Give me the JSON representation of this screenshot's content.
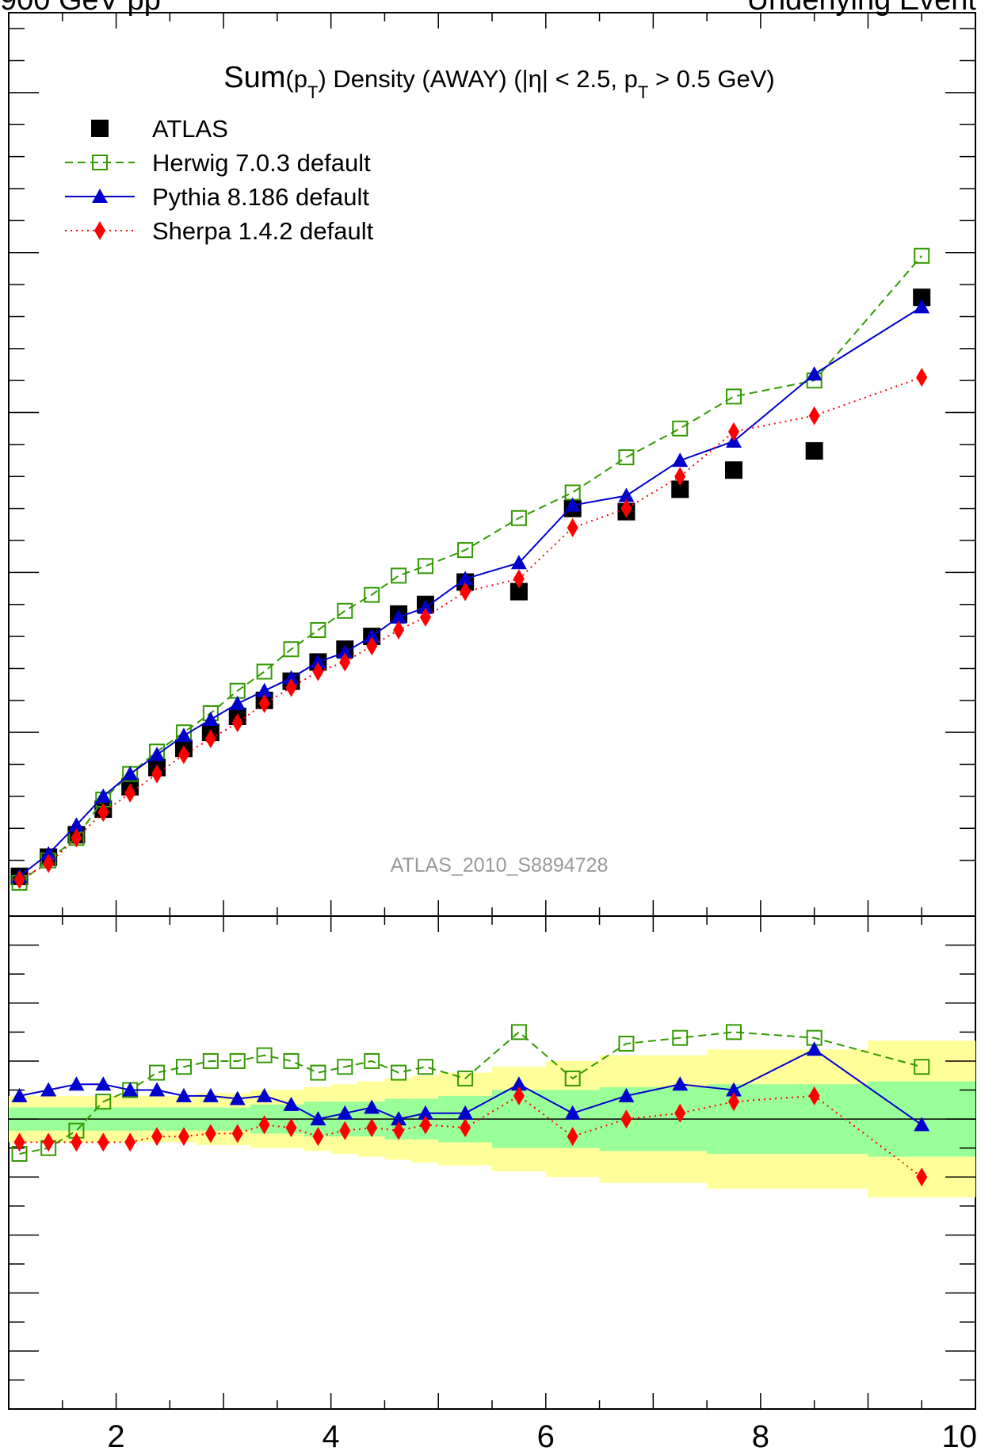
{
  "header": {
    "left": "900 GeV pp",
    "right": "Underlying Event"
  },
  "chart_data": {
    "type": "line",
    "title": "Sum(pT) Density (AWAY) (|η| < 2.5, pT > 0.5 GeV)",
    "title_parts": {
      "main": "Sum",
      "p1": "(p",
      "s1": "T",
      "p2": ") Density (AWAY) (|η| < 2.5, p",
      "s2": "T",
      "p3": " > 0.5 GeV)"
    },
    "watermark": "ATLAS_2010_S8894728",
    "xlim": [
      1,
      10
    ],
    "ylim": [
      0,
      2.75
    ],
    "ratio_ylim": [
      0.5,
      1.35
    ],
    "grid": false,
    "legend_position": "top-left",
    "x_ticks": [
      2,
      4,
      6,
      8,
      10
    ],
    "x_tick_labels": [
      "2",
      "4",
      "6",
      "8",
      "10"
    ],
    "x": [
      1.1,
      1.37,
      1.63,
      1.88,
      2.13,
      2.38,
      2.63,
      2.88,
      3.13,
      3.38,
      3.63,
      3.88,
      4.13,
      4.38,
      4.63,
      4.88,
      5.25,
      5.75,
      6.25,
      6.75,
      7.25,
      7.75,
      8.5,
      9.5
    ],
    "series": [
      {
        "name": "ATLAS",
        "color": "#000000",
        "marker": "filled-square",
        "line": "none",
        "values": [
          0.05,
          0.11,
          0.18,
          0.26,
          0.33,
          0.39,
          0.45,
          0.5,
          0.55,
          0.6,
          0.66,
          0.72,
          0.76,
          0.8,
          0.87,
          0.9,
          0.97,
          0.94,
          1.2,
          1.19,
          1.26,
          1.32,
          1.38,
          1.86
        ],
        "ratio": [
          1.0,
          1.0,
          1.0,
          1.0,
          1.0,
          1.0,
          1.0,
          1.0,
          1.0,
          1.0,
          1.0,
          1.0,
          1.0,
          1.0,
          1.0,
          1.0,
          1.0,
          1.0,
          1.0,
          1.0,
          1.0,
          1.0,
          1.0,
          1.0
        ]
      },
      {
        "name": "Herwig 7.0.3 default",
        "color": "#339900",
        "marker": "open-square",
        "line": "dashed",
        "values": [
          0.03,
          0.1,
          0.17,
          0.29,
          0.37,
          0.44,
          0.5,
          0.56,
          0.63,
          0.69,
          0.76,
          0.82,
          0.88,
          0.93,
          0.99,
          1.02,
          1.07,
          1.17,
          1.25,
          1.36,
          1.45,
          1.55,
          1.6,
          1.99
        ],
        "ratio": [
          0.94,
          0.95,
          0.98,
          1.03,
          1.05,
          1.08,
          1.09,
          1.1,
          1.1,
          1.11,
          1.1,
          1.08,
          1.09,
          1.1,
          1.08,
          1.09,
          1.07,
          1.15,
          1.07,
          1.13,
          1.14,
          1.15,
          1.14,
          1.09
        ],
        "ratio_note": "ratio values read from lower panel"
      },
      {
        "name": "Pythia 8.186 default",
        "color": "#0000cc",
        "marker": "filled-triangle",
        "line": "solid",
        "values": [
          0.05,
          0.12,
          0.21,
          0.3,
          0.37,
          0.43,
          0.49,
          0.54,
          0.59,
          0.63,
          0.67,
          0.72,
          0.75,
          0.8,
          0.86,
          0.89,
          0.98,
          1.03,
          1.21,
          1.24,
          1.35,
          1.41,
          1.62,
          1.83
        ],
        "ratio": [
          1.04,
          1.05,
          1.06,
          1.06,
          1.05,
          1.05,
          1.04,
          1.04,
          1.035,
          1.04,
          1.025,
          1.0,
          1.01,
          1.02,
          1.0,
          1.01,
          1.01,
          1.06,
          1.01,
          1.04,
          1.06,
          1.05,
          1.12,
          0.99
        ]
      },
      {
        "name": "Sherpa 1.4.2 default",
        "color": "#ff0000",
        "marker": "filled-diamond",
        "line": "dotted",
        "values": [
          0.04,
          0.09,
          0.17,
          0.25,
          0.31,
          0.37,
          0.43,
          0.48,
          0.53,
          0.59,
          0.64,
          0.69,
          0.72,
          0.77,
          0.82,
          0.86,
          0.94,
          0.98,
          1.14,
          1.2,
          1.3,
          1.44,
          1.49,
          1.61
        ],
        "ratio": [
          0.96,
          0.96,
          0.96,
          0.96,
          0.96,
          0.97,
          0.97,
          0.975,
          0.975,
          0.99,
          0.985,
          0.97,
          0.98,
          0.985,
          0.98,
          0.99,
          0.985,
          1.04,
          0.97,
          1.0,
          1.01,
          1.03,
          1.04,
          0.9
        ]
      }
    ],
    "ratio_bands": {
      "edges": [
        1.0,
        1.25,
        1.5,
        1.75,
        2.0,
        2.25,
        2.5,
        2.75,
        3.0,
        3.25,
        3.5,
        3.75,
        4.0,
        4.25,
        4.5,
        4.75,
        5.0,
        5.5,
        6.0,
        6.5,
        7.0,
        7.5,
        8.0,
        9.0,
        10.0
      ],
      "inner": [
        0.02,
        0.02,
        0.02,
        0.02,
        0.02,
        0.02,
        0.02,
        0.02,
        0.02,
        0.025,
        0.025,
        0.03,
        0.03,
        0.03,
        0.035,
        0.035,
        0.04,
        0.05,
        0.05,
        0.055,
        0.055,
        0.06,
        0.06,
        0.065
      ],
      "outer": [
        0.04,
        0.04,
        0.04,
        0.04,
        0.04,
        0.04,
        0.04,
        0.045,
        0.045,
        0.05,
        0.05,
        0.055,
        0.06,
        0.065,
        0.07,
        0.075,
        0.08,
        0.09,
        0.1,
        0.11,
        0.11,
        0.12,
        0.12,
        0.135
      ],
      "inner_color": "#99ff99",
      "outer_color": "#ffff99",
      "outer_extra": {
        "7.5-8.0": 0.13,
        "9.0-10.0": 0.16
      }
    }
  }
}
